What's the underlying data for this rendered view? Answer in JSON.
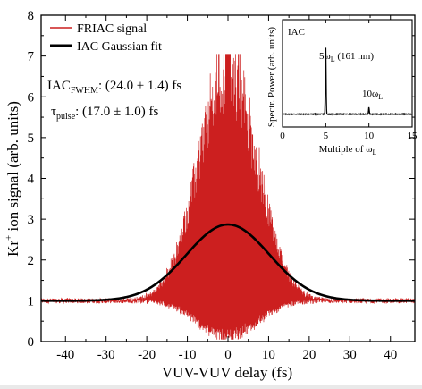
{
  "chart_data": [
    {
      "type": "line",
      "xlabel": "VUV-VUV delay (fs)",
      "ylabel_parts": {
        "base": "Kr",
        "sup": "+",
        "rest": " ion signal (arb. units)"
      },
      "xlim": [
        -46,
        46
      ],
      "ylim": [
        0,
        8
      ],
      "x_ticks": [
        -40,
        -30,
        -20,
        -10,
        0,
        10,
        20,
        30,
        40
      ],
      "y_ticks": [
        0,
        1,
        2,
        3,
        4,
        5,
        6,
        7,
        8
      ],
      "legend_position": "top-left",
      "series": [
        {
          "name": "FRIAC signal",
          "color": "#cc1f1f",
          "kind": "oscillating",
          "baseline": 1.0,
          "envelope_peak_delay_fs": 0,
          "envelope_fwhm_fs": 17.0,
          "max_value": 7.05,
          "min_value": 0.05,
          "oscillation_period_fs": 0.52
        },
        {
          "name": "IAC Gaussian fit",
          "color": "#000000",
          "kind": "gaussian",
          "baseline": 1.0,
          "peak_value": 2.87,
          "center_fs": 0,
          "fwhm_fs": 24.0
        }
      ],
      "annotations": [
        {
          "parts": [
            "IAC",
            "FWHM",
            ": (24.0 ± 1.4) fs"
          ]
        },
        {
          "parts": [
            "τ",
            "pulse",
            ": (17.0 ± 1.0) fs"
          ]
        }
      ]
    },
    {
      "type": "line",
      "title": "IAC",
      "xlabel_parts": {
        "base": "Multiple of ω",
        "sub": "L"
      },
      "ylabel": "Spectr. Power (arb. units)",
      "xlim": [
        0,
        15
      ],
      "x_ticks": [
        0,
        5,
        10,
        15
      ],
      "peaks": [
        {
          "x": 5,
          "height": 1.0,
          "label_parts": [
            "5ω",
            "L",
            " (161 nm)"
          ]
        },
        {
          "x": 10,
          "height": 0.1,
          "label_parts": [
            "10ω",
            "L",
            ""
          ]
        }
      ],
      "color": "#000000"
    }
  ]
}
